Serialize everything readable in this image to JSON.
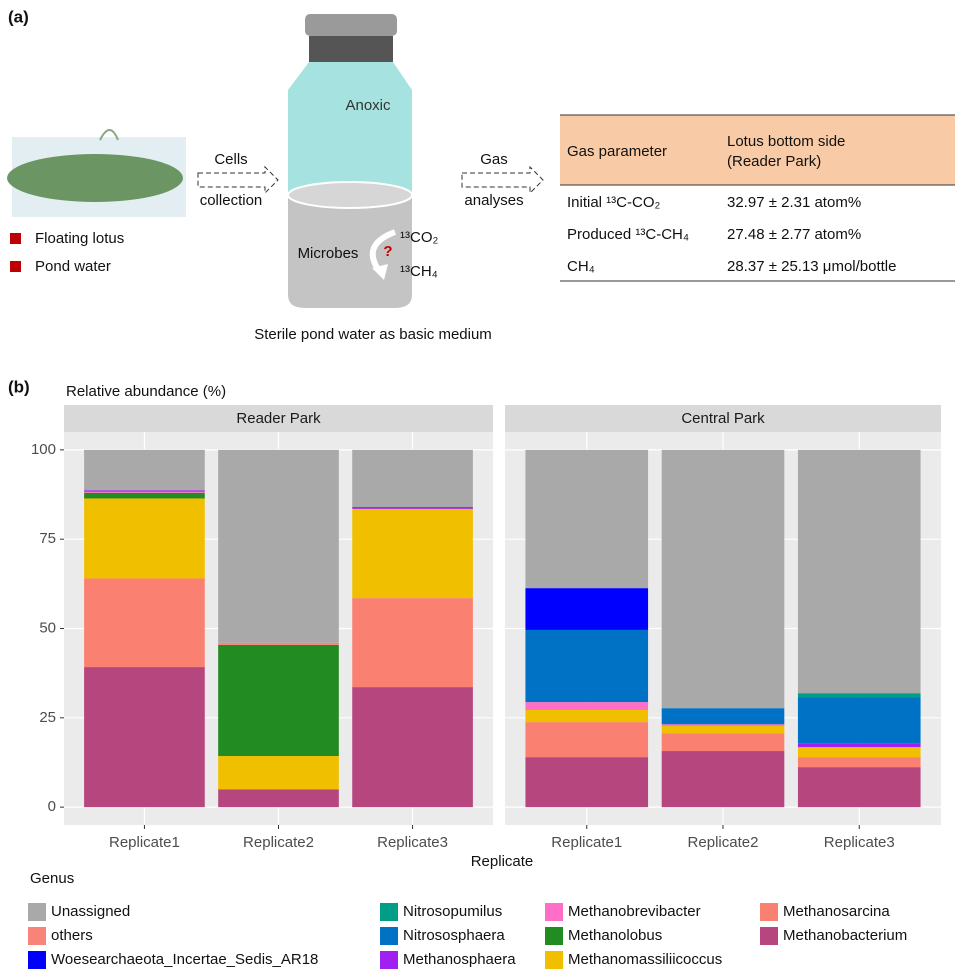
{
  "panel_a": {
    "label": "(a)",
    "sources": [
      "Floating lotus",
      "Pond water"
    ],
    "arrow1": [
      "Cells",
      "collection"
    ],
    "arrow2": [
      "Gas",
      "analyses"
    ],
    "bottle": {
      "top": "Anoxic",
      "microbes": "Microbes",
      "question": "?",
      "substrate": "¹³CO₂",
      "product": "¹³CH₄",
      "caption": "Sterile pond water as basic medium"
    },
    "table": {
      "header": [
        "Gas parameter",
        [
          "Lotus bottom side",
          "(Reader Park)"
        ]
      ],
      "rows": [
        [
          "Initial ¹³C-CO₂",
          "32.97 ± 2.31 atom%"
        ],
        [
          "Produced ¹³C-CH₄",
          "27.48 ± 2.77 atom%"
        ],
        [
          "CH₄",
          "28.37 ± 25.13 μmol/bottle"
        ]
      ]
    }
  },
  "panel_b_label": "(b)",
  "chart_data": {
    "type": "bar",
    "stacked": true,
    "title": "Relative abundance (%)",
    "x_label": "Replicate",
    "legend_title": "Genus",
    "facets": [
      "Reader Park",
      "Central Park"
    ],
    "categories": [
      "Replicate1",
      "Replicate2",
      "Replicate3"
    ],
    "ylim": [
      -5,
      105
    ],
    "yticks": [
      0,
      25,
      50,
      75,
      100
    ],
    "grid": true,
    "series": [
      {
        "name": "Unassigned",
        "color": "#a9a9a9",
        "values": [
          [
            11.3,
            54.0,
            16.0
          ],
          [
            38.7,
            72.3,
            68.1
          ]
        ]
      },
      {
        "name": "others",
        "color": "#f88479",
        "values": [
          [
            0,
            0.6,
            0
          ],
          [
            0,
            0,
            0
          ]
        ]
      },
      {
        "name": "Woesearchaeota_Incertae_Sedis_AR18",
        "color": "#0000ff",
        "values": [
          [
            0,
            0,
            0
          ],
          [
            11.7,
            0,
            0
          ]
        ]
      },
      {
        "name": "Nitrosopumilus",
        "color": "#009e86",
        "values": [
          [
            0,
            0,
            0
          ],
          [
            0,
            0,
            1.1
          ]
        ]
      },
      {
        "name": "Nitrososphaera",
        "color": "#0072c6",
        "values": [
          [
            0,
            0,
            0
          ],
          [
            20.2,
            4.5,
            12.9
          ]
        ]
      },
      {
        "name": "Methanosphaera",
        "color": "#a020f0",
        "values": [
          [
            0.4,
            0,
            0.5
          ],
          [
            0,
            0,
            1.1
          ]
        ]
      },
      {
        "name": "Methanobrevibacter",
        "color": "#ff6ec7",
        "values": [
          [
            0.3,
            0,
            0
          ],
          [
            2.2,
            0.5,
            0
          ]
        ]
      },
      {
        "name": "Methanolobus",
        "color": "#228b22",
        "values": [
          [
            1.6,
            31.1,
            0
          ],
          [
            0,
            0,
            0
          ]
        ]
      },
      {
        "name": "Methanomassiliicoccus",
        "color": "#f0c000",
        "values": [
          [
            22.4,
            9.3,
            25.0
          ],
          [
            3.4,
            2.0,
            2.8
          ]
        ]
      },
      {
        "name": "Methanosarcina",
        "color": "#fa8072",
        "values": [
          [
            24.8,
            0,
            24.9
          ],
          [
            9.8,
            5.0,
            2.8
          ]
        ]
      },
      {
        "name": "Methanobacterium",
        "color": "#b5467e",
        "values": [
          [
            39.2,
            5.0,
            33.6
          ],
          [
            14.0,
            15.7,
            11.2
          ]
        ]
      }
    ]
  }
}
